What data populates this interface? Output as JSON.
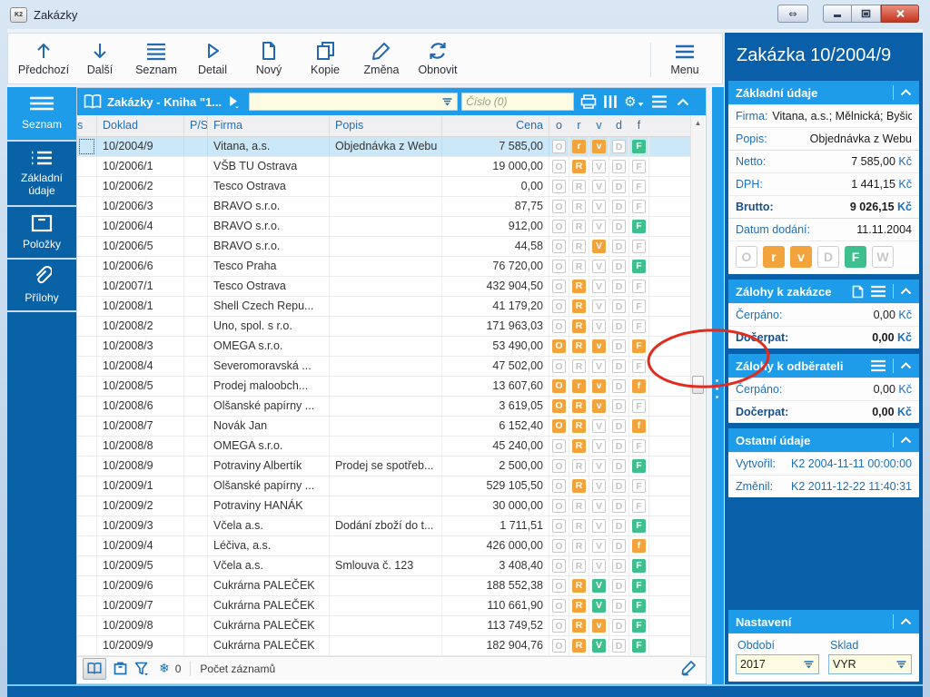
{
  "titlebar": {
    "title": "Zakázky",
    "icon_text": "K2"
  },
  "toolbar": {
    "buttons": [
      {
        "label": "Předchozí"
      },
      {
        "label": "Další"
      },
      {
        "label": "Seznam"
      },
      {
        "label": "Detail"
      },
      {
        "label": "Nový"
      },
      {
        "label": "Kopie"
      },
      {
        "label": "Změna"
      },
      {
        "label": "Obnovit"
      }
    ],
    "menu_label": "Menu"
  },
  "sidebar": {
    "items": [
      {
        "label": "Seznam"
      },
      {
        "label": "Základní údaje"
      },
      {
        "label": "Položky"
      },
      {
        "label": "Přílohy"
      }
    ]
  },
  "browse": {
    "title": "Zakázky - Kniha \"1...",
    "filter_value": "",
    "search_placeholder": "Číslo (0)",
    "columns": {
      "s": "s",
      "doklad": "Doklad",
      "ps": "P/S",
      "firma": "Firma",
      "popis": "Popis",
      "cena": "Cena",
      "o": "o",
      "r": "r",
      "v": "v",
      "d": "d",
      "f": "f"
    },
    "rows": [
      {
        "doklad": "10/2004/9",
        "firma": "Vitana, a.s.",
        "popis": "Objednávka z Webu",
        "cena": "7 585,00",
        "flags": "O.g r.o v.o D.g F.G",
        "selected": true
      },
      {
        "doklad": "10/2006/1",
        "firma": "VŠB TU Ostrava",
        "popis": "",
        "cena": "19 000,00",
        "flags": "O.g R.o V.g D.g F.g"
      },
      {
        "doklad": "10/2006/2",
        "firma": "Tesco Ostrava",
        "popis": "",
        "cena": "0,00",
        "flags": "O.g R.g V.g D.g F.g"
      },
      {
        "doklad": "10/2006/3",
        "firma": "BRAVO s.r.o.",
        "popis": "",
        "cena": "87,75",
        "flags": "O.g R.g V.g D.g F.g"
      },
      {
        "doklad": "10/2006/4",
        "firma": "BRAVO s.r.o.",
        "popis": "",
        "cena": "912,00",
        "flags": "O.g R.g V.g D.g F.G"
      },
      {
        "doklad": "10/2006/5",
        "firma": "BRAVO s.r.o.",
        "popis": "",
        "cena": "44,58",
        "flags": "O.g R.g V.o D.g F.g"
      },
      {
        "doklad": "10/2006/6",
        "firma": "Tesco Praha",
        "popis": "",
        "cena": "76 720,00",
        "flags": "O.g R.g V.g D.g F.G"
      },
      {
        "doklad": "10/2007/1",
        "firma": "Tesco Ostrava",
        "popis": "",
        "cena": "432 904,50",
        "flags": "O.g R.o V.g D.g F.g"
      },
      {
        "doklad": "10/2008/1",
        "firma": "Shell Czech Repu...",
        "popis": "",
        "cena": "41 179,20",
        "flags": "O.g R.o V.g D.g F.g"
      },
      {
        "doklad": "10/2008/2",
        "firma": "Uno, spol. s r.o.",
        "popis": "",
        "cena": "171 963,03",
        "flags": "O.g R.o V.g D.g F.g"
      },
      {
        "doklad": "10/2008/3",
        "firma": "OMEGA s.r.o.",
        "popis": "",
        "cena": "53 490,00",
        "flags": "O.o R.o v.o D.g F.o"
      },
      {
        "doklad": "10/2008/4",
        "firma": "Severomoravská ...",
        "popis": "",
        "cena": "47 502,00",
        "flags": "O.g R.g V.g D.g F.g"
      },
      {
        "doklad": "10/2008/5",
        "firma": "Prodej maloobch...",
        "popis": "",
        "cena": "13 607,60",
        "flags": "O.o r.o v.o D.g f.o"
      },
      {
        "doklad": "10/2008/6",
        "firma": "Olšanské papírny ...",
        "popis": "",
        "cena": "3 619,05",
        "flags": "O.o R.o v.o D.g F.g"
      },
      {
        "doklad": "10/2008/7",
        "firma": "Novák Jan",
        "popis": "",
        "cena": "6 152,40",
        "flags": "O.o R.o V.g D.g f.o"
      },
      {
        "doklad": "10/2008/8",
        "firma": "OMEGA s.r.o.",
        "popis": "",
        "cena": "45 240,00",
        "flags": "O.g R.o V.g D.g F.g"
      },
      {
        "doklad": "10/2008/9",
        "firma": "Potraviny Albertík",
        "popis": "Prodej se spotřeb...",
        "cena": "2 500,00",
        "flags": "O.g R.g V.g D.g F.G"
      },
      {
        "doklad": "10/2009/1",
        "firma": "Olšanské papírny ...",
        "popis": "",
        "cena": "529 105,50",
        "flags": "O.g R.o V.g D.g F.g"
      },
      {
        "doklad": "10/2009/2",
        "firma": "Potraviny HANÁK",
        "popis": "",
        "cena": "30 000,00",
        "flags": "O.g R.g V.g D.g F.g"
      },
      {
        "doklad": "10/2009/3",
        "firma": "Včela a.s.",
        "popis": "Dodání zboží do t...",
        "cena": "1 711,51",
        "flags": "O.g R.g V.g D.g F.G"
      },
      {
        "doklad": "10/2009/4",
        "firma": "Léčiva, a.s.",
        "popis": "",
        "cena": "426 000,00",
        "flags": "O.g R.g V.g D.g f.o"
      },
      {
        "doklad": "10/2009/5",
        "firma": "Včela a.s.",
        "popis": "Smlouva č. 123",
        "cena": "3 408,40",
        "flags": "O.g R.g V.g D.g F.G"
      },
      {
        "doklad": "10/2009/6",
        "firma": "Cukrárna PALEČEK",
        "popis": "",
        "cena": "188 552,38",
        "flags": "O.g R.o V.G D.g F.G"
      },
      {
        "doklad": "10/2009/7",
        "firma": "Cukrárna PALEČEK",
        "popis": "",
        "cena": "110 661,90",
        "flags": "O.g R.o V.G D.g F.G"
      },
      {
        "doklad": "10/2009/8",
        "firma": "Cukrárna PALEČEK",
        "popis": "",
        "cena": "113 749,52",
        "flags": "O.g R.o v.o D.g F.G"
      },
      {
        "doklad": "10/2009/9",
        "firma": "Cukrárna PALEČEK",
        "popis": "",
        "cena": "182 904,76",
        "flags": "O.g R.o V.G D.g F.G"
      }
    ],
    "statusbar": {
      "frozen_count": "0",
      "records_label": "Počet záznamů"
    }
  },
  "detail": {
    "title": "Zakázka 10/2004/9",
    "basic": {
      "header": "Základní údaje",
      "firma_label": "Firma:",
      "firma_value": "Vitana, a.s.; Mělnická; Byšice; ...",
      "popis_label": "Popis:",
      "popis_value": "Objednávka z Webu",
      "netto_label": "Netto:",
      "netto_value": "7 585,00",
      "dph_label": "DPH:",
      "dph_value": "1 441,15",
      "brutto_label": "Brutto:",
      "brutto_value": "9 026,15",
      "currency": "Kč",
      "datum_label": "Datum dodání:",
      "datum_value": "11.11.2004",
      "flags": "O.g r.o v.o D.g F.G W.g"
    },
    "advances_order": {
      "header": "Zálohy k zakázce",
      "cerpano_label": "Čerpáno:",
      "cerpano_value": "0,00",
      "docerpat_label": "Dočerpat:",
      "docerpat_value": "0,00"
    },
    "advances_customer": {
      "header": "Zálohy k odběrateli",
      "cerpano_label": "Čerpáno:",
      "cerpano_value": "0,00",
      "docerpat_label": "Dočerpat:",
      "docerpat_value": "0,00"
    },
    "other": {
      "header": "Ostatní údaje",
      "vytvoril_label": "Vytvořil:",
      "vytvoril_value": "K2 2004-11-11 00:00:00",
      "zmenil_label": "Změnil:",
      "zmenil_value": "K2 2011-12-22 11:40:31"
    },
    "settings": {
      "header": "Nastavení",
      "obdobi_label": "Období",
      "obdobi_value": "2017",
      "sklad_label": "Sklad",
      "sklad_value": "VYR"
    }
  },
  "annotation": {
    "shape": "ellipse",
    "color": "#E02B1E"
  },
  "colors": {
    "accent_blue": "#1E9BE9",
    "dark_blue": "#0A60A8",
    "orange": "#F2A33C",
    "green": "#3FBE8E",
    "label_blue": "#1E6FB8"
  }
}
